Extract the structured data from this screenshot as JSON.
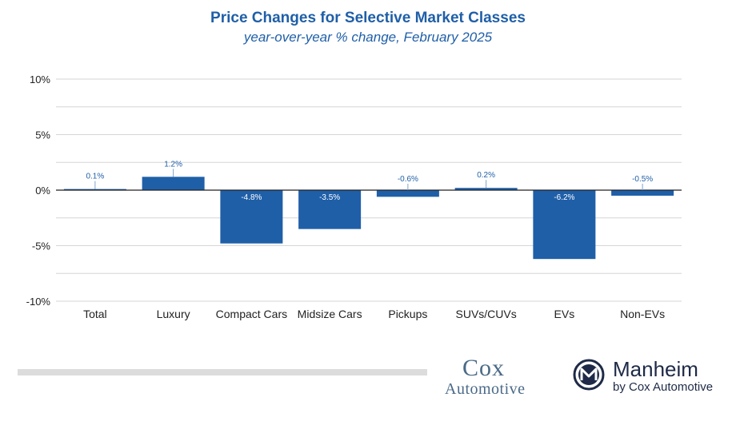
{
  "header": {
    "title": "Price Changes for Selective Market Classes",
    "subtitle": "year-over-year % change, February 2025"
  },
  "chart_data": {
    "type": "bar",
    "title": "Price Changes for Selective Market Classes",
    "subtitle": "year-over-year % change, February 2025",
    "categories": [
      "Total",
      "Luxury",
      "Compact Cars",
      "Midsize Cars",
      "Pickups",
      "SUVs/CUVs",
      "EVs",
      "Non-EVs"
    ],
    "values": [
      0.1,
      1.2,
      -4.8,
      -3.5,
      -0.6,
      0.2,
      -6.2,
      -0.5
    ],
    "data_labels": [
      "0.1%",
      "1.2%",
      "-4.8%",
      "-3.5%",
      "-0.6%",
      "0.2%",
      "-6.2%",
      "-0.5%"
    ],
    "ylim": [
      -10,
      10
    ],
    "yticks": [
      10,
      5,
      0,
      -5,
      -10
    ],
    "ytick_labels": [
      "10%",
      "5%",
      "0%",
      "-5%",
      "-10%"
    ],
    "xlabel": "",
    "ylabel": "",
    "grid": true,
    "bar_color": "#1f5fa8"
  },
  "footer": {
    "cox_line1": "Cox",
    "cox_line2": "Automotive",
    "manheim_name": "Manheim",
    "manheim_sub": "by Cox Automotive"
  }
}
